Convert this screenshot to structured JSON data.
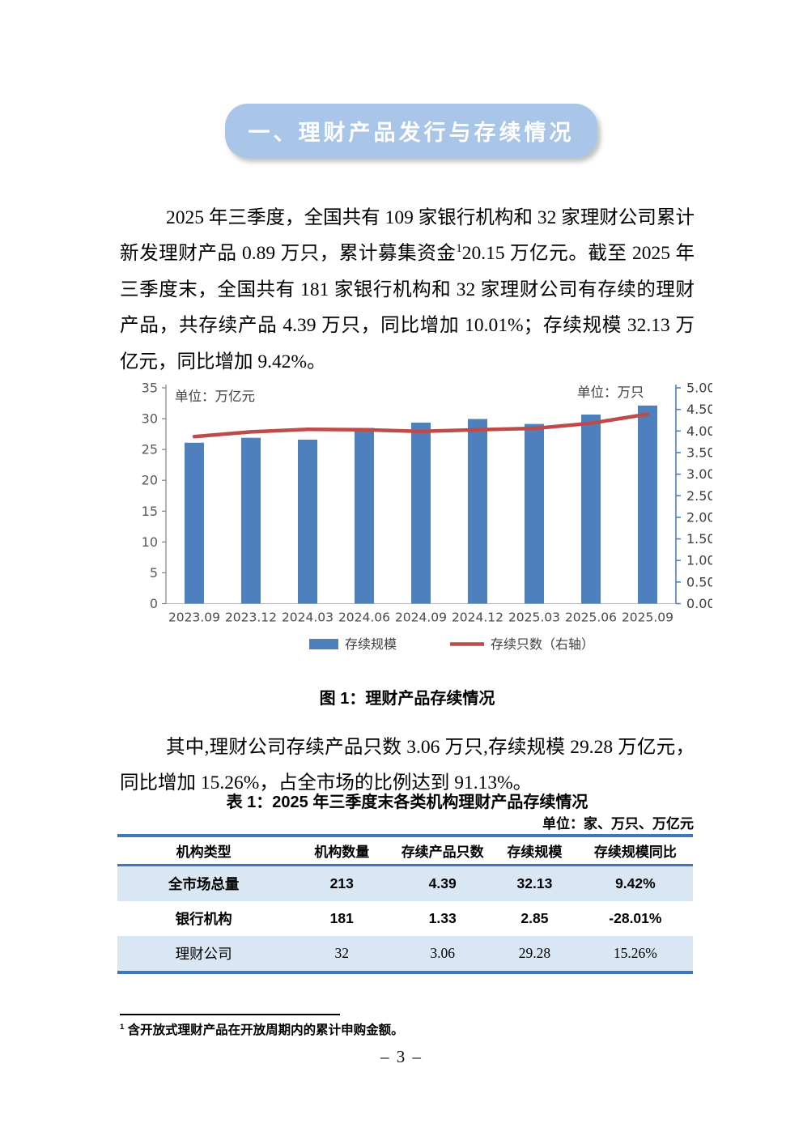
{
  "banner": {
    "title": "一、理财产品发行与存续情况"
  },
  "paragraphs": {
    "p1_pre": "2025 年三季度，全国共有 109 家银行机构和 32 家理财公司累计新发理财产品 0.89 万只，累计募集资金",
    "p1_sup": "1",
    "p1_post": "20.15 万亿元。截至 2025 年三季度末，全国共有 181 家银行机构和 32 家理财公司有存续的理财产品，共存续产品 4.39 万只，同比增加 10.01%；存续规模 32.13 万亿元，同比增加 9.42%。",
    "p2": "其中,理财公司存续产品只数 3.06 万只,存续规模 29.28 万亿元，同比增加 15.26%，占全市场的比例达到 91.13%。"
  },
  "figure": {
    "caption": "图 1：理财产品存续情况"
  },
  "chart_data": {
    "type": "bar+line",
    "categories": [
      "2023.09",
      "2023.12",
      "2024.03",
      "2024.06",
      "2024.09",
      "2024.12",
      "2025.03",
      "2025.06",
      "2025.09"
    ],
    "series": [
      {
        "name": "存续规模",
        "type": "bar",
        "axis": "left",
        "color": "#4E80BD",
        "values": [
          26.1,
          26.9,
          26.6,
          28.5,
          29.36,
          29.95,
          29.14,
          30.67,
          32.13
        ]
      },
      {
        "name": "存续只数（右轴）",
        "type": "line",
        "axis": "right",
        "color": "#BE4B48",
        "values": [
          3.87,
          3.98,
          4.04,
          4.03,
          3.99,
          4.03,
          4.06,
          4.18,
          4.39
        ]
      }
    ],
    "left_axis": {
      "min": 0,
      "max": 35,
      "step": 5,
      "unit_label": "单位：万亿元"
    },
    "right_axis": {
      "min": 0,
      "max": 5,
      "step": 0.5,
      "unit_label": "单位：万只"
    },
    "grid": false,
    "legend_position": "bottom",
    "colors": {
      "bar": "#4E80BD",
      "line": "#BE4B48",
      "left_axis_line": "#7F7F7F",
      "right_axis_line": "#4F81BD",
      "baseline": "#BFBFBF",
      "tick_text": "#595959"
    }
  },
  "table": {
    "title": "表 1：2025 年三季度末各类机构理财产品存续情况",
    "unit_note": "单位：家、万只、万亿元",
    "headers": [
      "机构类型",
      "机构数量",
      "存续产品只数",
      "存续规模",
      "存续规模同比"
    ],
    "rows": [
      {
        "cells": [
          "全市场总量",
          "213",
          "4.39",
          "32.13",
          "9.42%"
        ],
        "emphasis": true,
        "shaded": true
      },
      {
        "cells": [
          "银行机构",
          "181",
          "1.33",
          "2.85",
          "-28.01%"
        ],
        "emphasis": true,
        "shaded": false
      },
      {
        "cells": [
          "理财公司",
          "32",
          "3.06",
          "29.28",
          "15.26%"
        ],
        "emphasis": false,
        "shaded": true
      }
    ]
  },
  "footnote": {
    "sup": "1",
    "text": " 含开放式理财产品在开放周期内的累计申购金额。"
  },
  "page": {
    "number": "– 3 –"
  }
}
